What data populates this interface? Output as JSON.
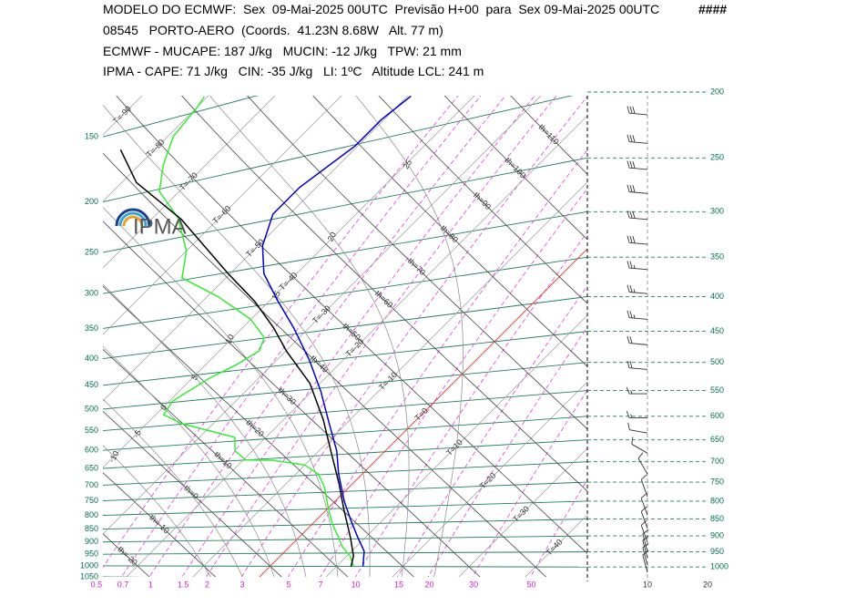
{
  "header": {
    "line1": "MODELO DO ECMWF:  Sex  09-Mai-2025 00UTC  Previsão H+00  para  Sex 09-Mai-2025 00UTC",
    "flag": "####",
    "line2": "08545   PORTO-AERO  (Coords.  41.23N 8.68W   Alt. 77 m)",
    "line3": "ECMWF - MUCAPE: 187 J/kg   MUCIN: -12 J/kg   TPW: 21 mm",
    "line4": "IPMA - CAPE: 71 J/kg   CIN: -35 J/kg   LI: 1ºC   Altitude LCL: 241 m"
  },
  "logo": "IPMA",
  "chart_data": {
    "type": "skewt",
    "log_y": true,
    "ylim": [
      1050,
      125
    ],
    "yticks": [
      150,
      200,
      250,
      300,
      350,
      400,
      450,
      500,
      550,
      600,
      650,
      700,
      750,
      800,
      850,
      900,
      950,
      1000,
      1050
    ],
    "y2lim": [
      1050,
      200
    ],
    "y2ticks": [
      200,
      250,
      300,
      350,
      400,
      450,
      500,
      550,
      600,
      650,
      700,
      750,
      800,
      850,
      900,
      950,
      1000
    ],
    "isotherms": [
      {
        "value": -90,
        "label": "T=-90"
      },
      {
        "value": -80,
        "label": "T=-80"
      },
      {
        "value": -70,
        "label": "T=-70"
      },
      {
        "value": -60,
        "label": "T=-60"
      },
      {
        "value": -50,
        "label": "T=-50"
      },
      {
        "value": -40,
        "label": "T=-40"
      },
      {
        "value": -30,
        "label": "T=-30"
      },
      {
        "value": -20,
        "label": "T=-20"
      },
      {
        "value": -10,
        "label": "T=-10"
      },
      {
        "value": 0,
        "label": "T=0"
      },
      {
        "value": 10,
        "label": "T=10"
      },
      {
        "value": 20,
        "label": "T=20"
      },
      {
        "value": 30,
        "label": "T=30"
      },
      {
        "value": 40,
        "label": "T=40"
      }
    ],
    "dry_adiabats": [
      {
        "value": -20,
        "label": "th=-20"
      },
      {
        "value": -10,
        "label": "th=-10"
      },
      {
        "value": 0,
        "label": "th=0"
      },
      {
        "value": 10,
        "label": "th=10"
      },
      {
        "value": 20,
        "label": "th=20"
      },
      {
        "value": 30,
        "label": "th=30"
      },
      {
        "value": 40,
        "label": "th=40"
      },
      {
        "value": 50,
        "label": "th=50"
      },
      {
        "value": 60,
        "label": "th=60"
      },
      {
        "value": 70,
        "label": "th=70"
      },
      {
        "value": 80,
        "label": "th=80"
      },
      {
        "value": 90,
        "label": "th=90"
      },
      {
        "value": 100,
        "label": "th=100"
      },
      {
        "value": 110,
        "label": "th=110"
      }
    ],
    "moist_adiabats": [
      -10,
      -5,
      0,
      5,
      10,
      15,
      20,
      25
    ],
    "mixing_ratio_ticks": [
      0.5,
      0.7,
      1,
      1.5,
      2,
      3,
      5,
      7,
      10,
      15,
      20,
      30,
      50
    ],
    "freezing_color": "#e03030",
    "series": [
      {
        "color": "#0000cc",
        "pressure": [
          1000,
          944,
          896,
          836,
          779,
          700,
          641,
          576,
          507,
          446,
          390,
          347,
          309,
          276,
          245,
          225,
          201,
          186,
          175
        ],
        "values": [
          14.0,
          11.9,
          8.9,
          5.1,
          1.4,
          -3.6,
          -7.3,
          -12.5,
          -18.6,
          -25.1,
          -32.3,
          -38.8,
          -44.9,
          -49.3,
          -52.5,
          -52.5,
          -50.4,
          -50.4,
          -49.5
        ]
      },
      {
        "color": "#33ee33",
        "pressure": [
          1000,
          961,
          927,
          895,
          849,
          791,
          737,
          698,
          672,
          655,
          650,
          625,
          591,
          549,
          525,
          497,
          459,
          439,
          420,
          399,
          368,
          329,
          297,
          266,
          230,
          202,
          181,
          162,
          148,
          142
        ],
        "values": [
          12.6,
          10.5,
          7.9,
          6.0,
          3.0,
          -0.4,
          -3.6,
          -6.6,
          -10.0,
          -15.5,
          -19.6,
          -22.6,
          -24.7,
          -34.7,
          -38.8,
          -39.5,
          -37.4,
          -35.3,
          -34.0,
          -35.3,
          -40.1,
          -48.4,
          -56.6,
          -60.0,
          -66.2,
          -73.0,
          -76.4,
          -79.2,
          -79.9,
          -80.5
        ]
      },
      {
        "color": "#000000",
        "pressure": [
          1000,
          961,
          896,
          806,
          725,
          652,
          565,
          488,
          426,
          386,
          343,
          301,
          232,
          190,
          162
        ],
        "values": [
          12.2,
          11.0,
          7.8,
          2.7,
          -2.2,
          -7.3,
          -14.1,
          -21.6,
          -29.9,
          -35.3,
          -42.2,
          -50.4,
          -65.5,
          -77.8,
          -85.1
        ]
      }
    ],
    "wind": {
      "pressure": [
        216,
        238,
        260,
        282,
        308,
        335,
        365,
        396,
        432,
        471,
        512,
        556,
        603,
        635,
        680,
        730,
        788,
        839,
        878,
        920,
        949,
        970,
        994,
        1019
      ],
      "speed": [
        30,
        30,
        30,
        30,
        30,
        30,
        25,
        25,
        25,
        20,
        20,
        15,
        15,
        10,
        10,
        10,
        10,
        10,
        10,
        10,
        10,
        10,
        10,
        10
      ],
      "direction": [
        275,
        275,
        275,
        275,
        275,
        275,
        275,
        275,
        275,
        275,
        275,
        270,
        270,
        280,
        300,
        330,
        340,
        340,
        340,
        340,
        345,
        345,
        345,
        345
      ]
    },
    "wind_xlim": [
      0,
      20
    ],
    "wind_xticks": [
      10,
      20
    ]
  }
}
